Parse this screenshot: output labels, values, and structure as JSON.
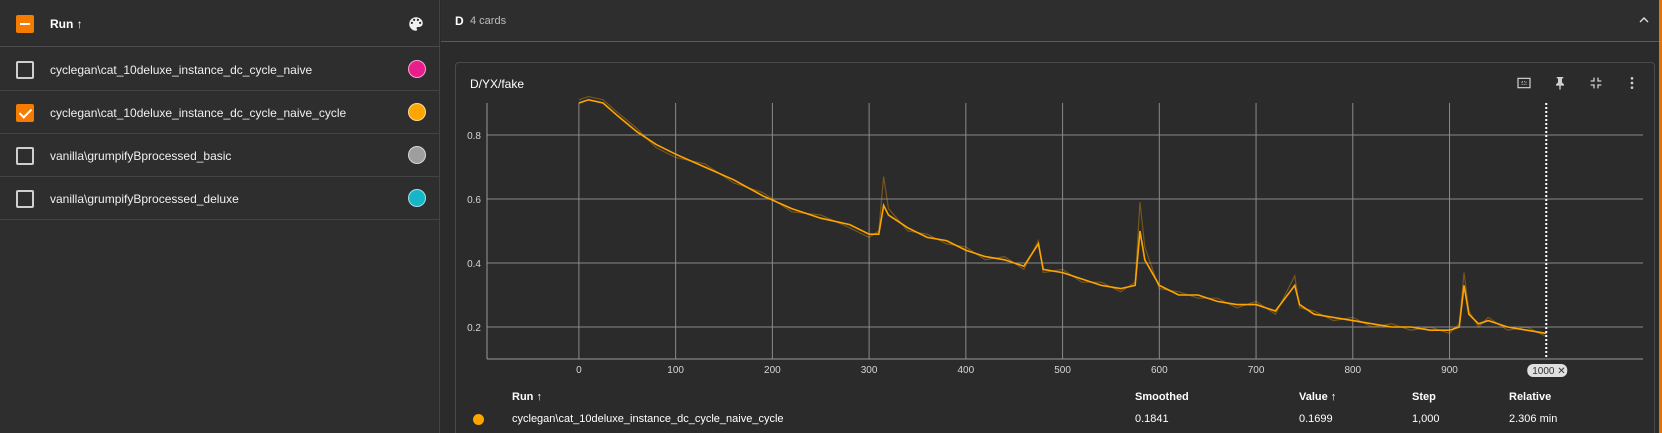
{
  "runs_panel": {
    "header_label": "Run ↑",
    "palette_icon": "palette-icon",
    "runs": [
      {
        "label": "cyclegan\\cat_10deluxe_instance_dc_cycle_naive",
        "checked": false,
        "color": "#e91e8c"
      },
      {
        "label": "cyclegan\\cat_10deluxe_instance_dc_cycle_naive_cycle",
        "checked": true,
        "color": "#ffa500"
      },
      {
        "label": "vanilla\\grumpifyBprocessed_basic",
        "checked": false,
        "color": "#9e9e9e"
      },
      {
        "label": "vanilla\\grumpifyBprocessed_deluxe",
        "checked": false,
        "color": "#17b5c8"
      }
    ]
  },
  "group": {
    "name": "D",
    "count": "4 cards",
    "collapse_icon": "chevron-up-icon"
  },
  "card": {
    "title": "D/YX/fake",
    "tools": [
      "fit-domain-icon",
      "pin-icon",
      "collapse-icon",
      "more-vert-icon"
    ]
  },
  "chart_data": {
    "type": "line",
    "title": "D/YX/fake",
    "xlabel": "",
    "ylabel": "",
    "xlim": [
      -95,
      1100
    ],
    "ylim": [
      0.1,
      0.9
    ],
    "x_ticks": [
      0,
      100,
      200,
      300,
      400,
      500,
      600,
      700,
      800,
      900
    ],
    "y_ticks": [
      0.2,
      0.4,
      0.6,
      0.8
    ],
    "hover_step_label": "1000",
    "grid": true,
    "series": [
      {
        "name": "cyclegan\\cat_10deluxe_instance_dc_cycle_naive_cycle",
        "color": "#ffa500",
        "x": [
          0,
          10,
          25,
          40,
          60,
          80,
          100,
          130,
          160,
          190,
          220,
          250,
          280,
          300,
          310,
          315,
          320,
          340,
          360,
          380,
          400,
          420,
          440,
          460,
          475,
          480,
          500,
          520,
          540,
          560,
          575,
          580,
          585,
          600,
          620,
          640,
          660,
          680,
          700,
          720,
          740,
          745,
          760,
          780,
          800,
          820,
          840,
          860,
          880,
          900,
          910,
          915,
          920,
          930,
          940,
          960,
          980,
          1000
        ],
        "smoothed": [
          0.9,
          0.91,
          0.9,
          0.86,
          0.81,
          0.77,
          0.74,
          0.7,
          0.66,
          0.61,
          0.57,
          0.54,
          0.52,
          0.49,
          0.49,
          0.58,
          0.55,
          0.51,
          0.48,
          0.47,
          0.44,
          0.42,
          0.41,
          0.39,
          0.46,
          0.38,
          0.37,
          0.35,
          0.33,
          0.32,
          0.33,
          0.5,
          0.41,
          0.33,
          0.3,
          0.3,
          0.28,
          0.27,
          0.27,
          0.25,
          0.33,
          0.27,
          0.24,
          0.23,
          0.22,
          0.21,
          0.2,
          0.2,
          0.19,
          0.19,
          0.2,
          0.33,
          0.24,
          0.21,
          0.22,
          0.2,
          0.19,
          0.18
        ],
        "raw": [
          0.91,
          0.92,
          0.91,
          0.87,
          0.82,
          0.76,
          0.73,
          0.71,
          0.65,
          0.62,
          0.56,
          0.55,
          0.51,
          0.48,
          0.5,
          0.67,
          0.57,
          0.5,
          0.49,
          0.46,
          0.45,
          0.41,
          0.42,
          0.38,
          0.47,
          0.37,
          0.38,
          0.34,
          0.34,
          0.31,
          0.34,
          0.59,
          0.45,
          0.32,
          0.31,
          0.29,
          0.29,
          0.26,
          0.28,
          0.24,
          0.36,
          0.26,
          0.25,
          0.22,
          0.23,
          0.2,
          0.21,
          0.19,
          0.2,
          0.18,
          0.21,
          0.37,
          0.25,
          0.2,
          0.23,
          0.19,
          0.2,
          0.17
        ]
      }
    ]
  },
  "tooltip": {
    "headers": {
      "run": "Run ↑",
      "smoothed": "Smoothed",
      "value": "Value ↑",
      "step": "Step",
      "relative": "Relative"
    },
    "row": {
      "run": "cyclegan\\cat_10deluxe_instance_dc_cycle_naive_cycle",
      "smoothed": "0.1841",
      "value": "0.1699",
      "step": "1,000",
      "relative": "2.306 min",
      "color": "#ffa500"
    }
  }
}
